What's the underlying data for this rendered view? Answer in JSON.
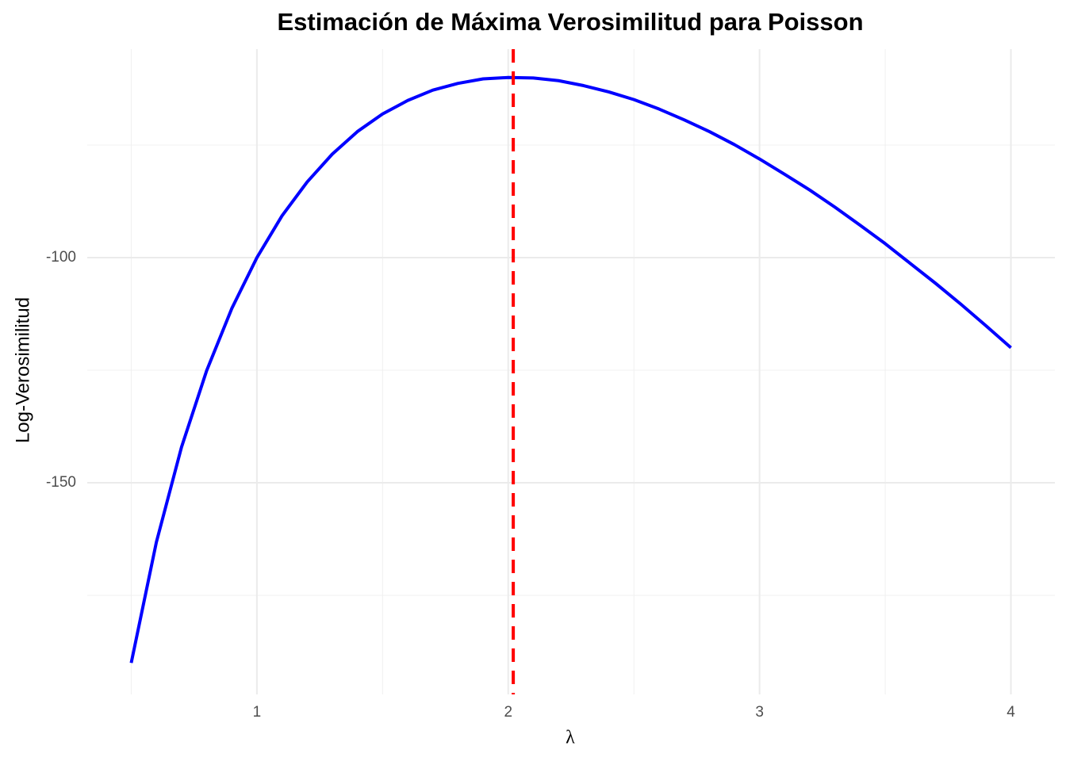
{
  "chart_data": {
    "type": "line",
    "title": "Estimación de Máxima Verosimilitud para Poisson",
    "x_label": "λ",
    "y_label": "Log-Verosimilitud",
    "x": [
      0.5,
      0.6,
      0.7,
      0.8,
      0.9,
      1.0,
      1.1,
      1.2,
      1.3,
      1.4,
      1.5,
      1.6,
      1.7,
      1.8,
      1.9,
      2.0,
      2.1,
      2.2,
      2.3,
      2.4,
      2.5,
      2.6,
      2.7,
      2.8,
      2.9,
      3.0,
      3.1,
      3.2,
      3.3,
      3.4,
      3.5,
      3.6,
      3.7,
      3.8,
      3.9,
      4.0
    ],
    "series": [
      {
        "color": "#0000ff",
        "values": [
          -190.0,
          -163.2,
          -142.1,
          -125.1,
          -111.3,
          -100.0,
          -90.7,
          -83.2,
          -77.0,
          -72.0,
          -68.1,
          -65.1,
          -62.8,
          -61.3,
          -60.3,
          -60.0,
          -60.1,
          -60.7,
          -61.8,
          -63.2,
          -64.9,
          -67.0,
          -69.4,
          -72.0,
          -74.9,
          -78.1,
          -81.5,
          -85.0,
          -88.8,
          -92.8,
          -96.9,
          -101.3,
          -105.7,
          -110.3,
          -115.1,
          -120.0
        ]
      }
    ],
    "vline": {
      "x": 2.02,
      "color": "#ff0000"
    },
    "xlim": [
      0.325,
      4.175
    ],
    "ylim": [
      -197,
      -53.7
    ],
    "xticks": [
      1,
      2,
      3,
      4
    ],
    "yticks": [
      -150,
      -100
    ],
    "x_minor_ticks": [
      0.5,
      1.5,
      2.5,
      3.5
    ],
    "y_minor_ticks": [
      -175,
      -125,
      -75
    ],
    "grid": true
  }
}
